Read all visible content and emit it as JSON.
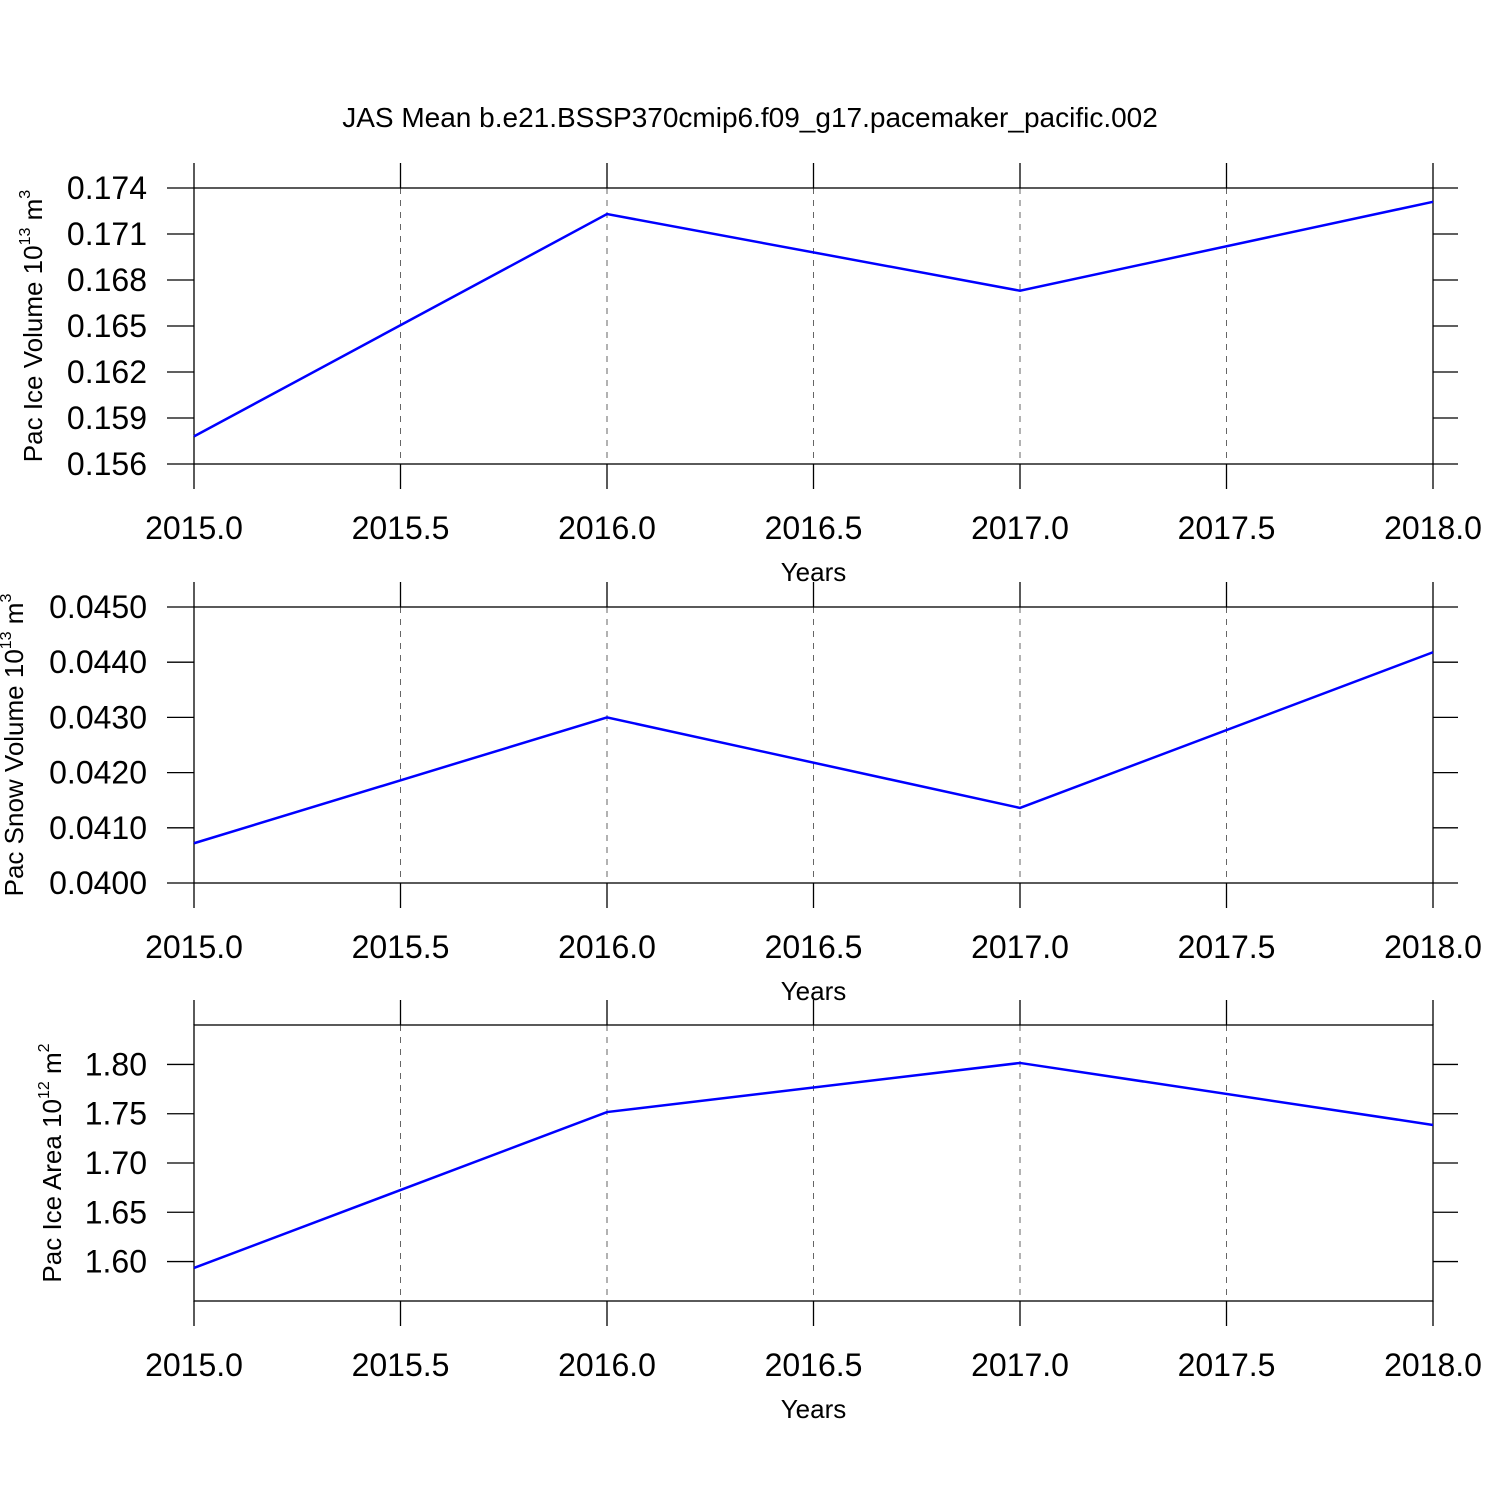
{
  "title": "JAS Mean b.e21.BSSP370cmip6.f09_g17.pacemaker_pacific.002",
  "chart_data": [
    {
      "type": "line",
      "ylabel": [
        "Pac Ice Volume 10",
        "13",
        " m",
        "3"
      ],
      "xlabel": "Years",
      "x": [
        2015,
        2016,
        2017,
        2018
      ],
      "series": [
        {
          "color": "#0000ff",
          "values": [
            0.1578,
            0.1723,
            0.1673,
            0.1731
          ]
        }
      ],
      "xlim": [
        2015,
        2018
      ],
      "xticks": [
        {
          "value": 2015,
          "label": "2015.0"
        },
        2015.5,
        {
          "value": 2016,
          "label": "2016.0"
        },
        2016.5,
        {
          "value": 2017,
          "label": "2017.0"
        },
        2017.5,
        {
          "value": 2018,
          "label": "2018.0"
        }
      ],
      "ylim": [
        0.156,
        0.174
      ],
      "yticks": [
        0.156,
        0.159,
        0.162,
        0.165,
        0.168,
        0.171,
        0.174
      ],
      "grid": true
    },
    {
      "type": "line",
      "ylabel": [
        "Pac Snow Volume 10",
        "13",
        " m",
        "3"
      ],
      "xlabel": "Years",
      "x": [
        2015,
        2016,
        2017,
        2018
      ],
      "series": [
        {
          "color": "#0000ff",
          "values": [
            0.04072,
            0.043,
            0.04136,
            0.04418
          ]
        }
      ],
      "xlim": [
        2015,
        2018
      ],
      "xticks": [
        {
          "value": 2015,
          "label": "2015.0"
        },
        2015.5,
        {
          "value": 2016,
          "label": "2016.0"
        },
        2016.5,
        {
          "value": 2017,
          "label": "2017.0"
        },
        2017.5,
        {
          "value": 2018,
          "label": "2018.0"
        }
      ],
      "ylim": [
        0.04,
        0.045
      ],
      "yticks": [
        {
          "value": 0.04,
          "label": "0.0400"
        },
        {
          "value": 0.041,
          "label": "0.0410"
        },
        {
          "value": 0.042,
          "label": "0.0420"
        },
        {
          "value": 0.043,
          "label": "0.0430"
        },
        {
          "value": 0.044,
          "label": "0.0440"
        },
        {
          "value": 0.045,
          "label": "0.0450"
        }
      ],
      "grid": true
    },
    {
      "type": "line",
      "ylabel": [
        "Pac Ice Area 10",
        "12",
        " m",
        "2"
      ],
      "xlabel": "Years",
      "x": [
        2015,
        2016,
        2017,
        2018
      ],
      "series": [
        {
          "color": "#0000ff",
          "values": [
            1.5935,
            1.7517,
            1.8015,
            1.7386
          ]
        }
      ],
      "xlim": [
        2015,
        2018
      ],
      "xticks": [
        {
          "value": 2015,
          "label": "2015.0"
        },
        2015.5,
        {
          "value": 2016,
          "label": "2016.0"
        },
        2016.5,
        {
          "value": 2017,
          "label": "2017.0"
        },
        2017.5,
        {
          "value": 2018,
          "label": "2018.0"
        }
      ],
      "ylim": [
        1.56,
        1.84
      ],
      "yticks": [
        {
          "value": 1.6,
          "label": "1.60"
        },
        1.65,
        {
          "value": 1.7,
          "label": "1.70"
        },
        1.75,
        {
          "value": 1.8,
          "label": "1.80"
        }
      ],
      "grid": true
    }
  ]
}
